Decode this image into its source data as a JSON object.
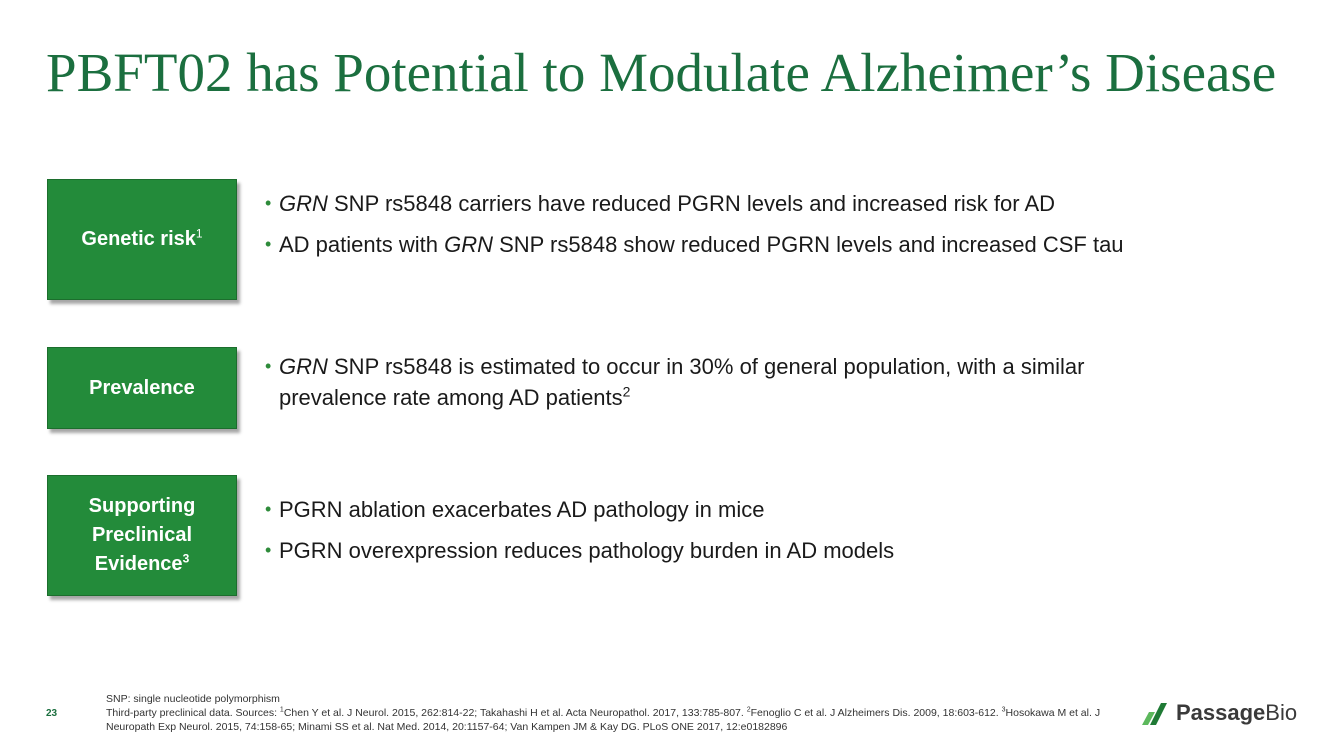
{
  "title": "PBFT02 has Potential to Modulate Alzheimer’s Disease",
  "sections": [
    {
      "label": "Genetic risk",
      "label_sup": "1",
      "bullets": [
        {
          "italic": "GRN",
          "text": " SNP rs5848 carriers have reduced PGRN levels and increased risk for AD"
        },
        {
          "pre": "AD patients with ",
          "italic": "GRN",
          "text": " SNP rs5848 show reduced PGRN levels and increased CSF tau"
        }
      ]
    },
    {
      "label": "Prevalence",
      "bullets": [
        {
          "italic": "GRN",
          "text": " SNP rs5848 is estimated to occur in 30% of general population, with a similar prevalence rate among AD patients",
          "sup": "2"
        }
      ]
    },
    {
      "label_lines": [
        "Supporting",
        "Preclinical",
        "Evidence"
      ],
      "label_sup": "3",
      "bullets": [
        {
          "text": "PGRN ablation exacerbates AD pathology in mice"
        },
        {
          "text": "PGRN overexpression reduces pathology burden in AD models"
        }
      ]
    }
  ],
  "footer": {
    "line1": "SNP: single nucleotide polymorphism",
    "line2_pre": "Third-party preclinical data. Sources: ",
    "s1": "1",
    "ref1": "Chen Y et al. J Neurol. 2015, 262:814-22; Takahashi H et al. Acta Neuropathol. 2017, 133:785-807. ",
    "s2": "2",
    "ref2": "Fenoglio C et al. J Alzheimers Dis. 2009, 18:603-612. ",
    "s3": "3",
    "ref3": "Hosokawa M et al. J Neuropath Exp Neurol. 2015, 74:158-65; Minami SS et al. Nat Med. 2014, 20:1157-64; Van Kampen JM & Kay DG. PLoS ONE 2017, 12:e0182896"
  },
  "page_number": "23",
  "logo": {
    "word1": "Passage",
    "word2": "Bio",
    "icon": "passage-bio-logo-mark"
  },
  "colors": {
    "brand_green": "#238b3a",
    "title_green": "#1b6f3f",
    "bullet_green": "#2e8b3a"
  }
}
